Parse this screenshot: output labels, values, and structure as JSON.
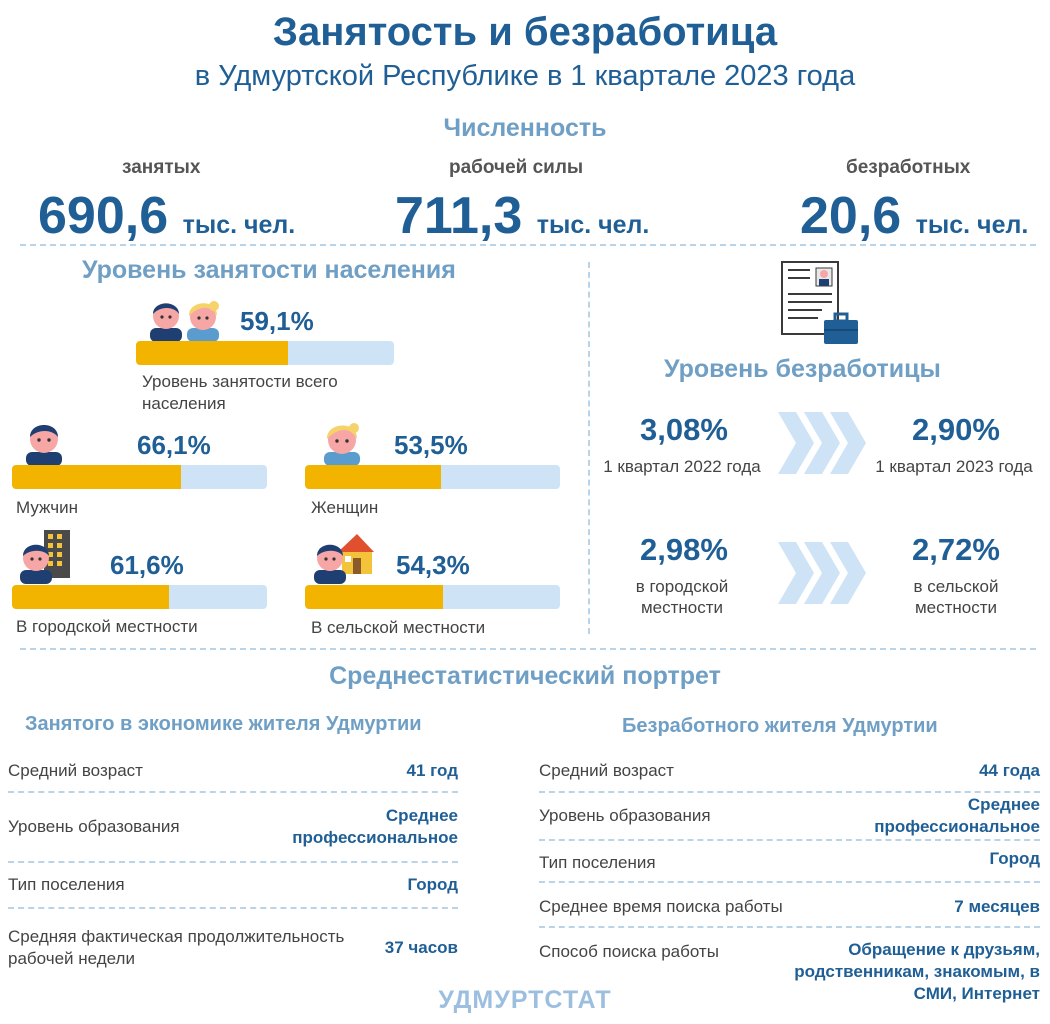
{
  "header": {
    "title": "Занятость и безработица",
    "subtitle": "в Удмуртской Республике в 1 квартале 2023 года"
  },
  "counts": {
    "section_title": "Численность",
    "unit": "тыс. чел.",
    "employed": {
      "label": "занятых",
      "value": "690,6"
    },
    "labor": {
      "label": "рабочей силы",
      "value": "711,3"
    },
    "unemployed": {
      "label": "безработных",
      "value": "20,6"
    }
  },
  "employment": {
    "section_title": "Уровень занятости населения",
    "total": {
      "value": "59,1%",
      "level": 59.1,
      "caption": "Уровень занятости всего населения"
    },
    "men": {
      "value": "66,1%",
      "level": 66.1,
      "caption": "Мужчин"
    },
    "women": {
      "value": "53,5%",
      "level": 53.5,
      "caption": "Женщин"
    },
    "urban": {
      "value": "61,6%",
      "level": 61.6,
      "caption": "В городской местности"
    },
    "rural": {
      "value": "54,3%",
      "level": 54.3,
      "caption": "В сельской местности"
    }
  },
  "unemployment": {
    "section_title": "Уровень безработицы",
    "q2022": {
      "value": "3,08%",
      "caption": "1 квартал 2022 года"
    },
    "q2023": {
      "value": "2,90%",
      "caption": "1 квартал 2023 года"
    },
    "urban": {
      "value": "2,98%",
      "caption": "в городской местности"
    },
    "rural": {
      "value": "2,72%",
      "caption": "в сельской местности"
    }
  },
  "portrait": {
    "section_title": "Среднестатистический портрет",
    "employed": {
      "title": "Занятого в экономике жителя Удмуртии",
      "rows": [
        {
          "label": "Средний возраст",
          "value": "41 год"
        },
        {
          "label": "Уровень образования",
          "value": "Среднее профессиональное"
        },
        {
          "label": "Тип поселения",
          "value": "Город"
        },
        {
          "label": "Средняя фактическая продолжительность рабочей недели",
          "value": "37 часов"
        }
      ]
    },
    "unemployed": {
      "title": "Безработного жителя Удмуртии",
      "rows": [
        {
          "label": "Средний возраст",
          "value": "44 года"
        },
        {
          "label": "Уровень образования",
          "value": "Среднее профессиональное"
        },
        {
          "label": "Тип поселения",
          "value": "Город"
        },
        {
          "label": "Среднее время поиска работы",
          "value": "7 месяцев"
        },
        {
          "label": "Способ поиска работы",
          "value": "Обращение к друзьям, родственникам, знакомым, в СМИ, Интернет"
        }
      ]
    }
  },
  "footer": {
    "org": "УДМУРТСТАТ"
  },
  "colors": {
    "primary": "#1f5f95",
    "accent": "#6f9fc4",
    "bar_fill": "#f3b400",
    "bar_track": "#cfe3f6",
    "arrow": "#cfe3f6"
  },
  "icons": [
    "man-avatar-icon",
    "woman-avatar-icon",
    "building-icon",
    "house-icon",
    "resume-briefcase-icon",
    "chevron-arrows-icon"
  ]
}
